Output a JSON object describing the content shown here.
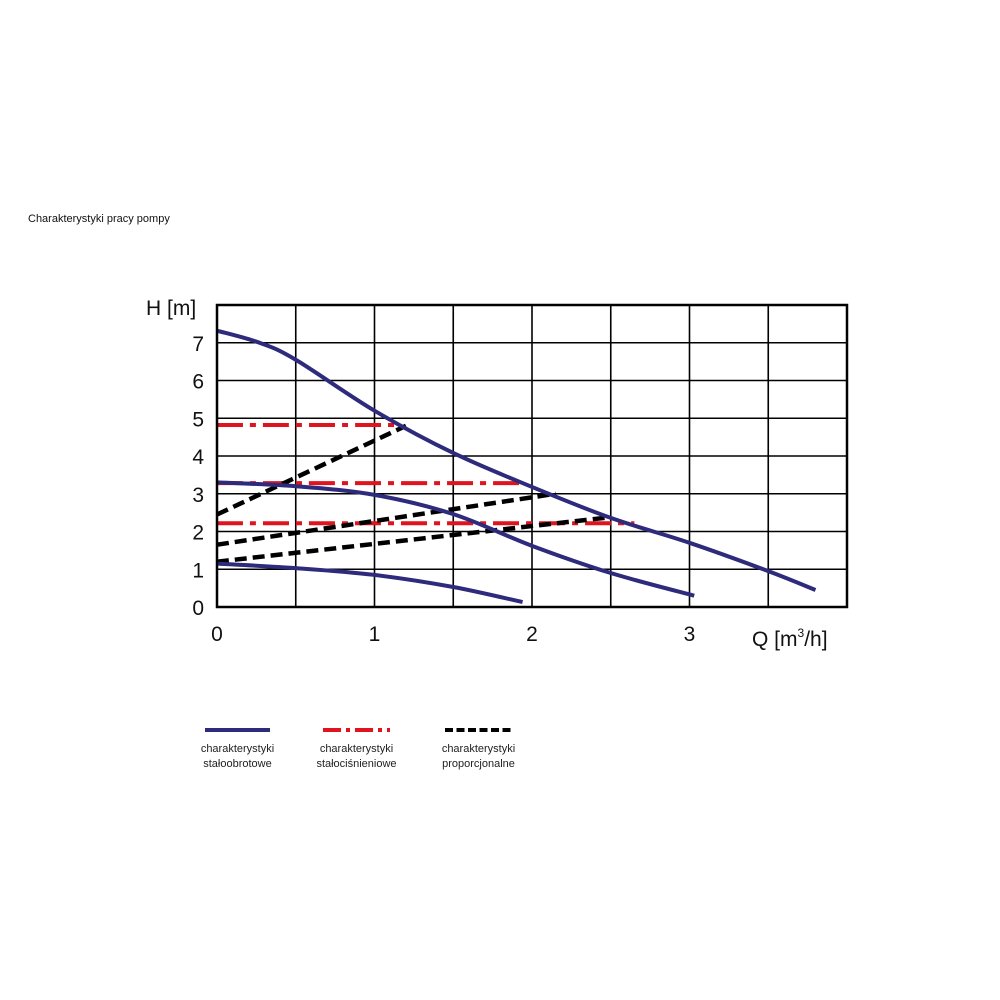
{
  "title": "Charakterystyki pracy pompy",
  "chart_data": {
    "type": "line",
    "xlabel": "Q [m³/h]",
    "xlabel_main": "Q [m",
    "xlabel_sup": "3",
    "xlabel_end": "/h]",
    "ylabel": "H [m]",
    "xlim": [
      0,
      4
    ],
    "ylim": [
      0,
      8
    ],
    "xticks": [
      "0",
      "1",
      "2",
      "3"
    ],
    "yticks": [
      "0",
      "1",
      "2",
      "3",
      "4",
      "5",
      "6",
      "7"
    ],
    "grid": true,
    "legend_position": "bottom",
    "colors": {
      "constant_speed": "#2e2a7c",
      "constant_pressure": "#e0141e",
      "proportional": "#000000"
    },
    "legend": [
      {
        "line1": "charakterystyki",
        "line2": "stałoobrotowe",
        "style": "solid",
        "color": "#2e2a7c"
      },
      {
        "line1": "charakterystyki",
        "line2": "stałociśnieniowe",
        "style": "dash-dot",
        "color": "#e0141e"
      },
      {
        "line1": "charakterystyki",
        "line2": "proporcjonalne",
        "style": "dashed",
        "color": "#000000"
      }
    ],
    "series": [
      {
        "group": "constant_speed",
        "x": [
          0,
          0.27,
          0.5,
          1.0,
          1.5,
          2.0,
          2.5,
          3.0,
          3.5,
          3.8
        ],
        "y": [
          7.32,
          7.0,
          6.55,
          5.2,
          4.08,
          3.18,
          2.36,
          1.7,
          0.95,
          0.45
        ]
      },
      {
        "group": "constant_speed",
        "x": [
          0,
          0.5,
          1.0,
          1.5,
          2.0,
          2.5,
          3.03
        ],
        "y": [
          3.3,
          3.2,
          2.97,
          2.46,
          1.62,
          0.9,
          0.3
        ]
      },
      {
        "group": "constant_speed",
        "x": [
          0,
          0.5,
          1.0,
          1.5,
          1.94
        ],
        "y": [
          1.15,
          1.03,
          0.85,
          0.53,
          0.13
        ]
      },
      {
        "group": "constant_pressure",
        "x": [
          0,
          1.15
        ],
        "y": [
          4.82,
          4.82
        ]
      },
      {
        "group": "constant_pressure",
        "x": [
          0,
          1.95
        ],
        "y": [
          3.28,
          3.28
        ]
      },
      {
        "group": "constant_pressure",
        "x": [
          0,
          2.65
        ],
        "y": [
          2.22,
          2.22
        ]
      },
      {
        "group": "proportional",
        "x": [
          0,
          1.2
        ],
        "y": [
          2.45,
          4.8
        ]
      },
      {
        "group": "proportional",
        "x": [
          0,
          2.15
        ],
        "y": [
          1.65,
          3.0
        ]
      },
      {
        "group": "proportional",
        "x": [
          0,
          2.5
        ],
        "y": [
          1.2,
          2.38
        ]
      }
    ]
  }
}
